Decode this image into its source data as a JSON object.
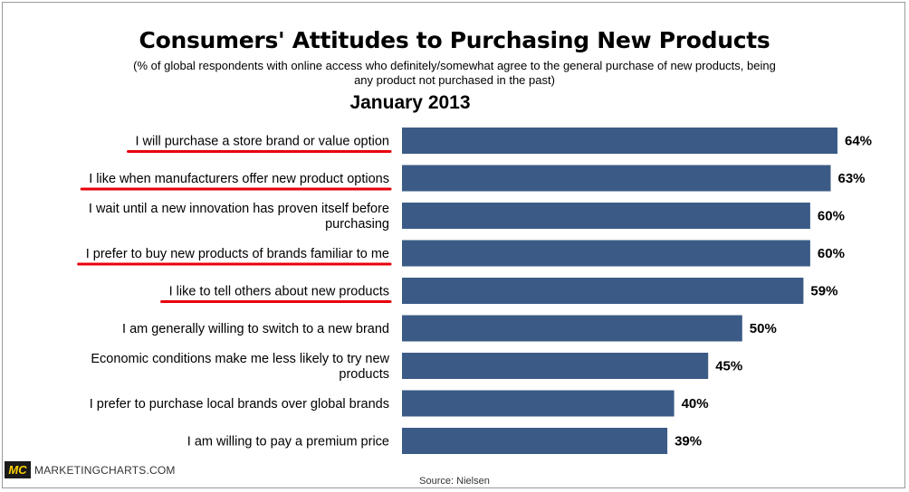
{
  "chart_data": {
    "type": "bar",
    "orientation": "horizontal",
    "title": "Consumers' Attitudes to Purchasing New Products",
    "subtitle_lines": [
      "(% of global respondents with online access who definitely/somewhat agree to the general purchase of new products, being",
      "any product not purchased in the past)"
    ],
    "period": "January 2013",
    "categories": [
      [
        "I will purchase a store brand or value option"
      ],
      [
        "I like when manufacturers offer new product options"
      ],
      [
        "I wait until a new innovation has proven itself before",
        "purchasing"
      ],
      [
        "I prefer to buy new products of brands familiar to me"
      ],
      [
        "I like to tell others about new products"
      ],
      [
        "I am generally willing to switch to a new brand"
      ],
      [
        "Economic conditions make me less likely to try new",
        "products"
      ],
      [
        "I prefer to purchase local brands over global brands"
      ],
      [
        "I am willing to pay a premium price"
      ]
    ],
    "values": [
      64,
      63,
      60,
      60,
      59,
      50,
      45,
      40,
      39
    ],
    "value_labels": [
      "64%",
      "63%",
      "60%",
      "60%",
      "59%",
      "50%",
      "45%",
      "40%",
      "39%"
    ],
    "underlined": [
      true,
      true,
      false,
      true,
      true,
      false,
      false,
      false,
      false
    ],
    "xlim": [
      0,
      64
    ],
    "bar_color": "#3b5b86",
    "underline_color": "#e8000b",
    "grid": false,
    "legend": false
  },
  "branding": {
    "logo": "MC",
    "site": "MARKETINGCHARTS.COM",
    "source": "Source: Nielsen"
  }
}
